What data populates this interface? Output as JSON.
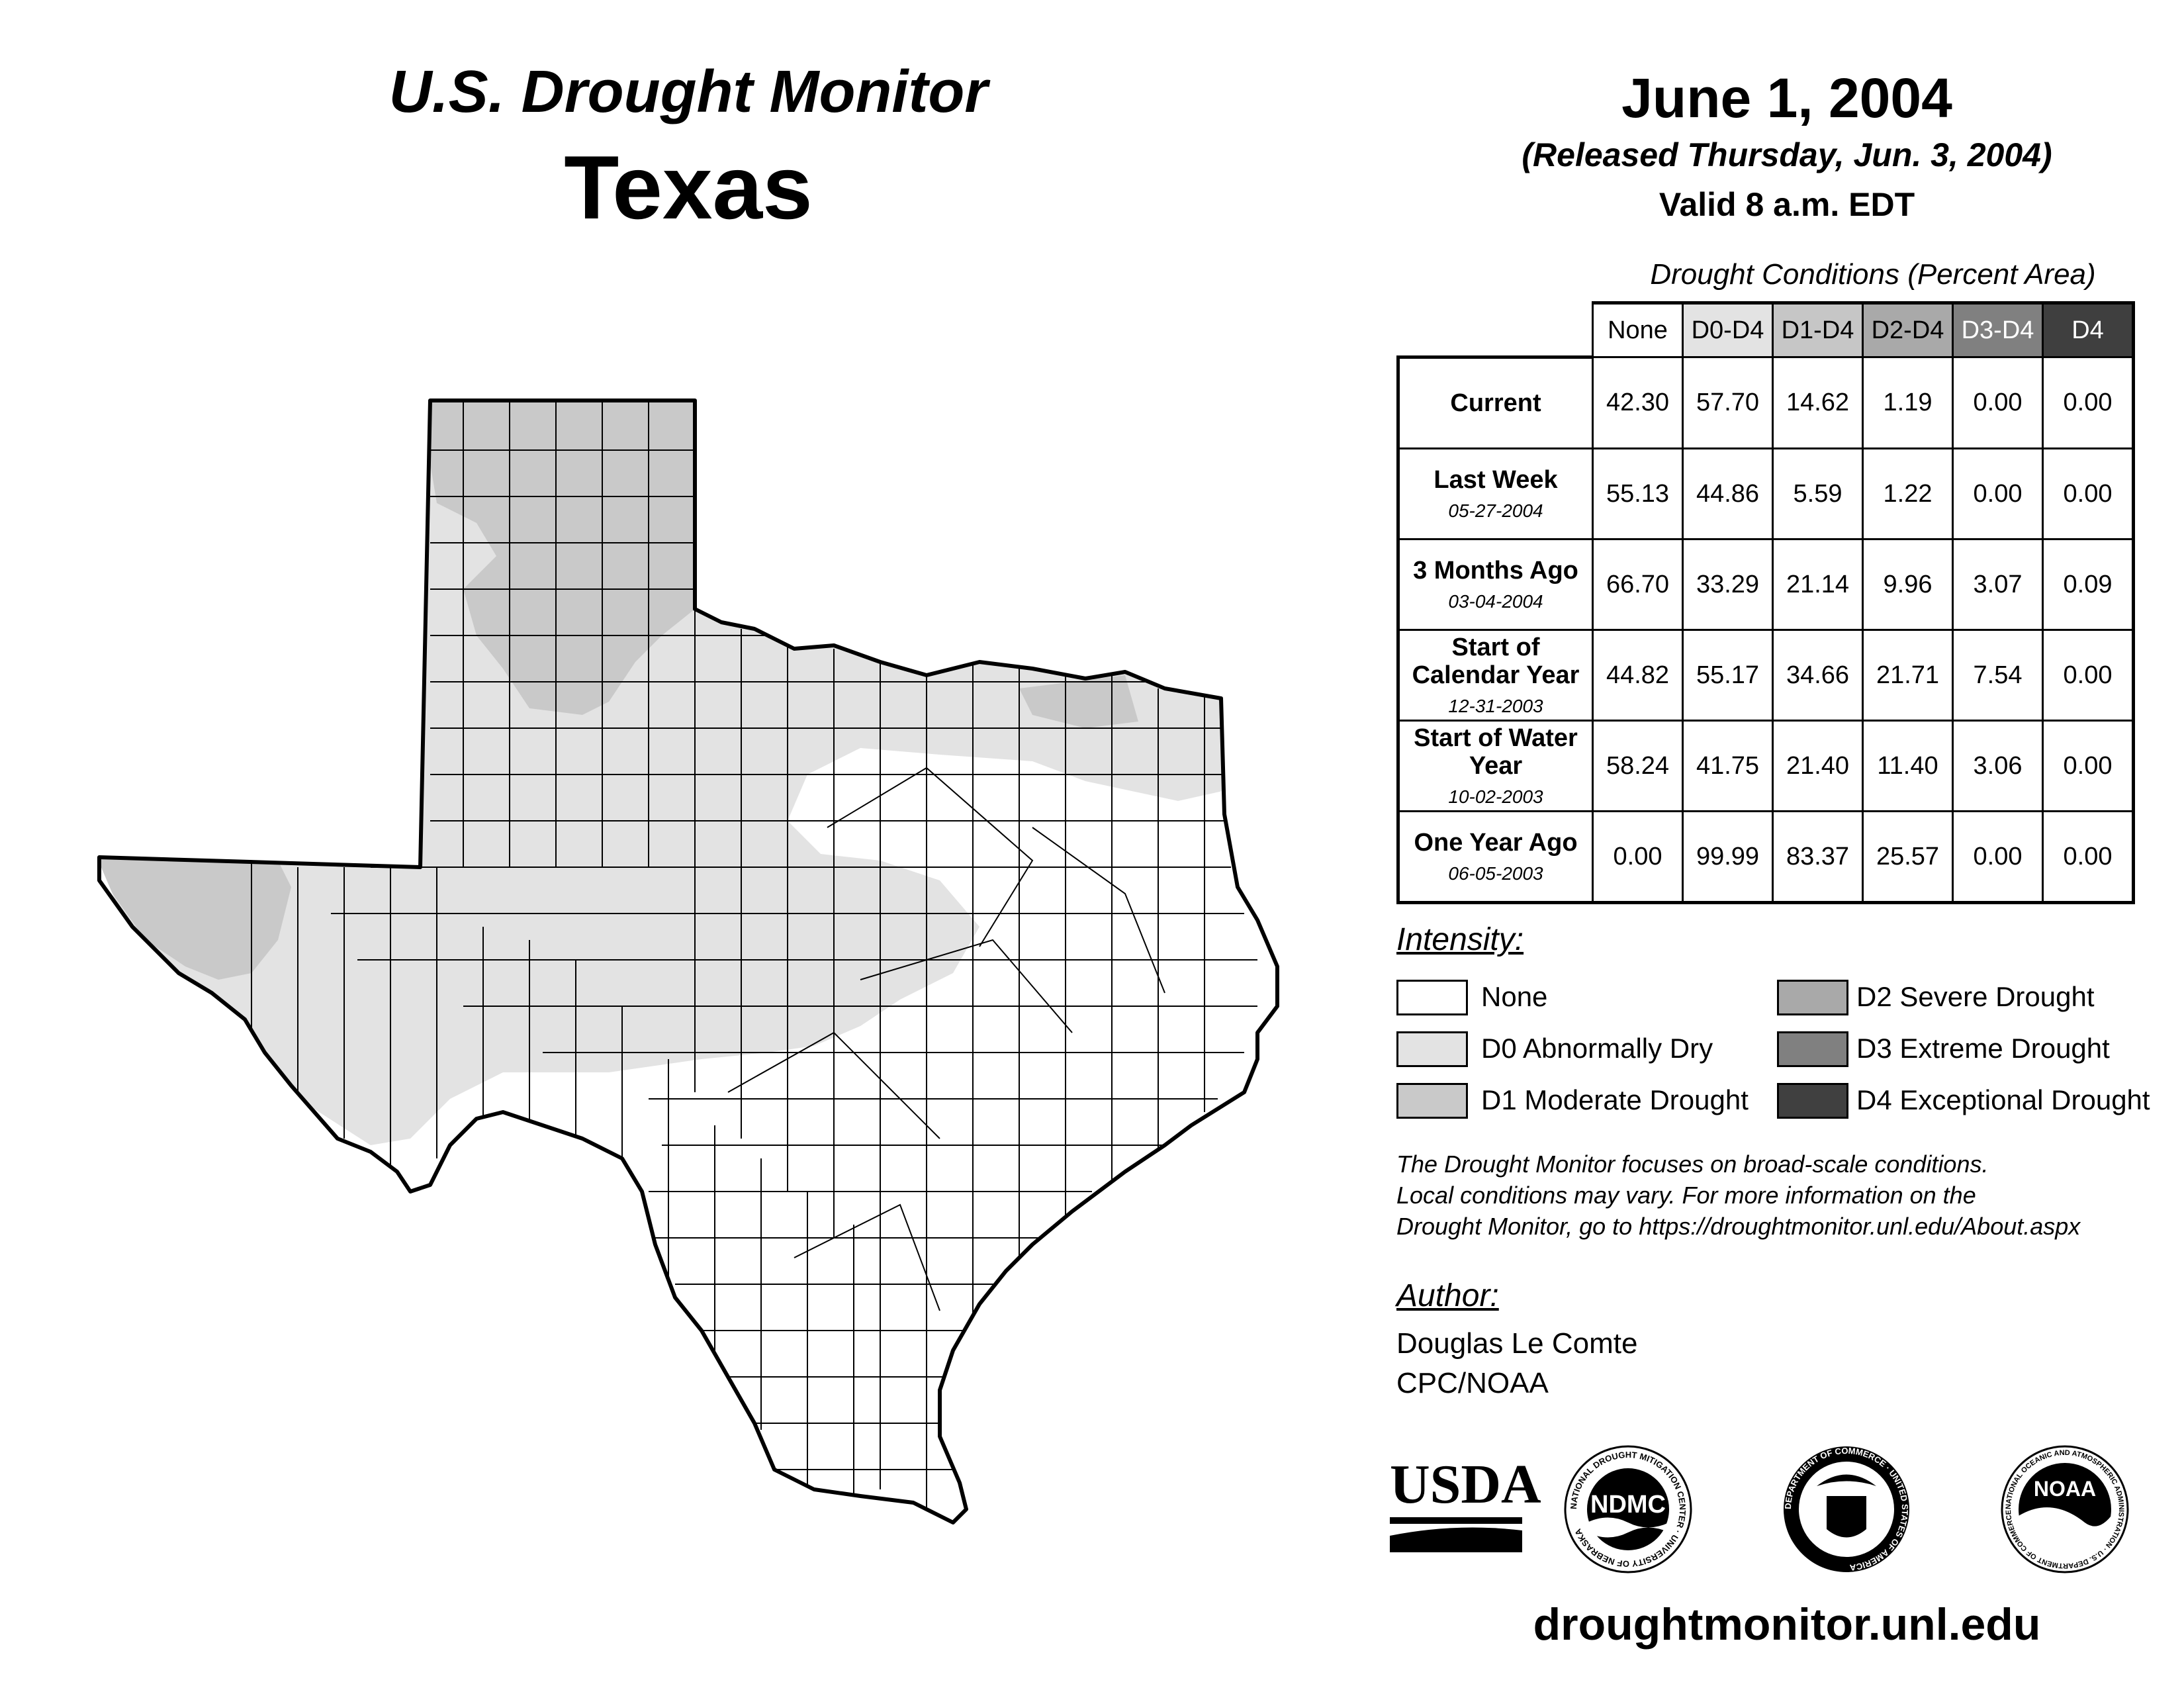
{
  "header": {
    "title": "U.S. Drought Monitor",
    "region": "Texas",
    "date": "June 1, 2004",
    "released": "(Released Thursday, Jun. 3, 2004)",
    "valid": "Valid 8 a.m. EDT"
  },
  "table": {
    "caption": "Drought Conditions (Percent Area)",
    "columns": [
      "None",
      "D0-D4",
      "D1-D4",
      "D2-D4",
      "D3-D4",
      "D4"
    ],
    "column_colors": [
      "#ffffff",
      "#e3e3e3",
      "#c6c6c6",
      "#a9a9a9",
      "#808080",
      "#3f3f3f"
    ],
    "rows": [
      {
        "label": "Current",
        "date": "",
        "values": [
          "42.30",
          "57.70",
          "14.62",
          "1.19",
          "0.00",
          "0.00"
        ]
      },
      {
        "label": "Last Week",
        "date": "05-27-2004",
        "values": [
          "55.13",
          "44.86",
          "5.59",
          "1.22",
          "0.00",
          "0.00"
        ]
      },
      {
        "label": "3 Months Ago",
        "date": "03-04-2004",
        "values": [
          "66.70",
          "33.29",
          "21.14",
          "9.96",
          "3.07",
          "0.09"
        ]
      },
      {
        "label": "Start of Calendar Year",
        "date": "12-31-2003",
        "values": [
          "44.82",
          "55.17",
          "34.66",
          "21.71",
          "7.54",
          "0.00"
        ]
      },
      {
        "label": "Start of Water Year",
        "date": "10-02-2003",
        "values": [
          "58.24",
          "41.75",
          "21.40",
          "11.40",
          "3.06",
          "0.00"
        ]
      },
      {
        "label": "One Year Ago",
        "date": "06-05-2003",
        "values": [
          "0.00",
          "99.99",
          "83.37",
          "25.57",
          "0.00",
          "0.00"
        ]
      }
    ]
  },
  "legend": {
    "title": "Intensity:",
    "items": [
      {
        "label": "None",
        "color": "#ffffff"
      },
      {
        "label": "D0 Abnormally Dry",
        "color": "#e3e3e3"
      },
      {
        "label": "D1 Moderate Drought",
        "color": "#c9c9c9"
      },
      {
        "label": "D2 Severe Drought",
        "color": "#a9a9a9"
      },
      {
        "label": "D3 Extreme Drought",
        "color": "#808080"
      },
      {
        "label": "D4 Exceptional Drought",
        "color": "#404040"
      }
    ]
  },
  "note": {
    "line1": "The Drought Monitor focuses on broad-scale conditions.",
    "line2": "Local conditions may vary. For more information on the",
    "line3": "Drought Monitor, go to https://droughtmonitor.unl.edu/About.aspx"
  },
  "author": {
    "title": "Author:",
    "name": "Douglas Le Comte",
    "org": "CPC/NOAA"
  },
  "logos": {
    "usda": "USDA",
    "ndmc": "NDMC",
    "ndmc_ring": "NATIONAL DROUGHT MITIGATION CENTER · UNIVERSITY OF NEBRASKA",
    "commerce_ring": "DEPARTMENT OF COMMERCE · UNITED STATES OF AMERICA",
    "noaa": "NOAA",
    "noaa_ring": "NATIONAL OCEANIC AND ATMOSPHERIC ADMINISTRATION · U.S. DEPARTMENT OF COMMERCE"
  },
  "map": {
    "category_colors": {
      "none": "#ffffff",
      "d0": "#e3e3e3",
      "d1": "#c9c9c9"
    }
  },
  "website": "droughtmonitor.unl.edu"
}
